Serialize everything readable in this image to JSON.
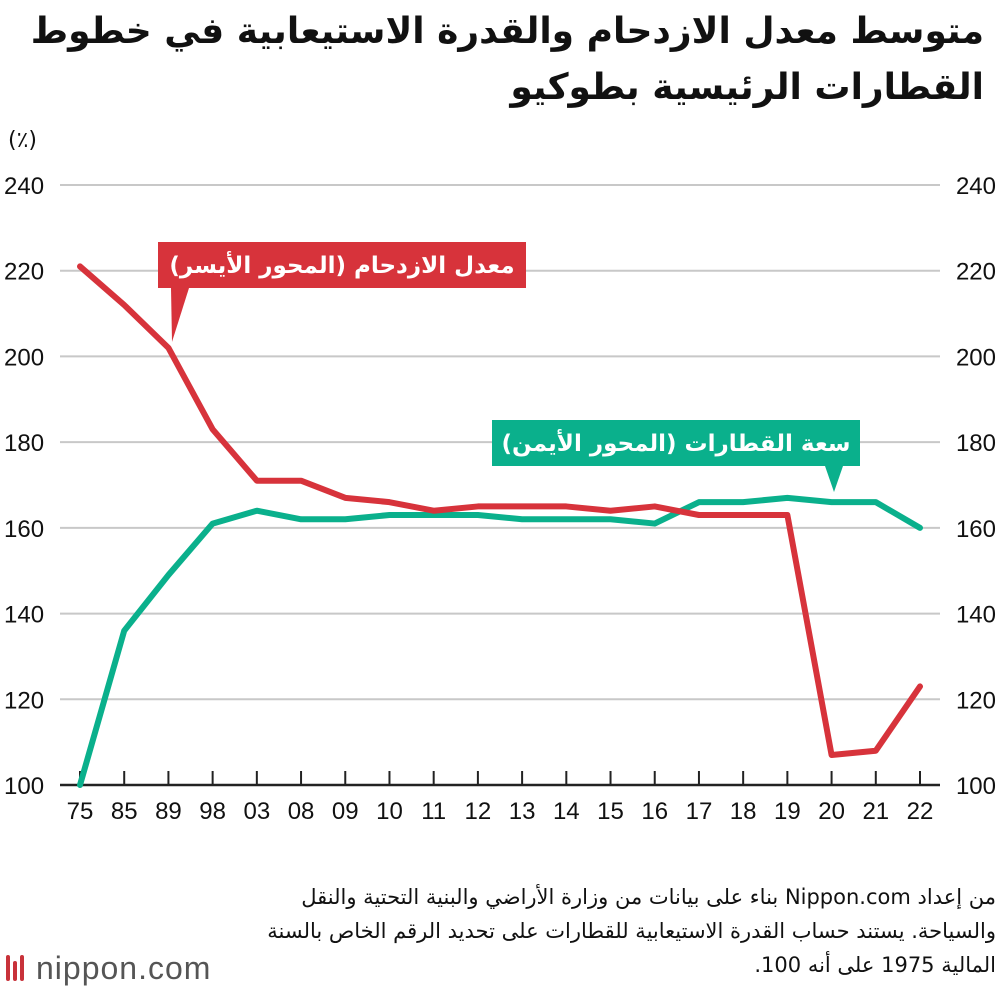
{
  "title": "متوسط معدل الازدحام والقدرة الاستيعابية في خطوط القطارات الرئيسية بطوكيو",
  "unit_label": "(٪)",
  "source": "من إعداد Nippon.com بناء على بيانات من وزارة الأراضي والبنية التحتية والنقل والسياحة. يستند حساب القدرة الاستيعابية للقطارات على تحديد الرقم الخاص بالسنة المالية 1975 على أنه 100.",
  "logo": {
    "text": "nippon.com"
  },
  "colors": {
    "congestion": "#d7333b",
    "capacity": "#0ab08c",
    "grid": "#c8c8c8",
    "axis": "#222222"
  },
  "chart_data": {
    "type": "line",
    "categories": [
      "75",
      "85",
      "89",
      "98",
      "03",
      "08",
      "09",
      "10",
      "11",
      "12",
      "13",
      "14",
      "15",
      "16",
      "17",
      "18",
      "19",
      "20",
      "21",
      "22"
    ],
    "ylim": [
      100,
      240
    ],
    "yticks": [
      100,
      120,
      140,
      160,
      180,
      200,
      220,
      240
    ],
    "grid": true,
    "series": [
      {
        "name": "معدل الازدحام (المحور الأيسر)",
        "axis": "left",
        "values": [
          221,
          212,
          202,
          183,
          171,
          171,
          167,
          166,
          164,
          165,
          165,
          165,
          164,
          165,
          163,
          163,
          163,
          107,
          108,
          123
        ]
      },
      {
        "name": "سعة القطارات (المحور الأيمن)",
        "axis": "right",
        "values": [
          100,
          136,
          149,
          161,
          164,
          162,
          162,
          163,
          163,
          163,
          162,
          162,
          162,
          161,
          166,
          166,
          167,
          166,
          166,
          160
        ]
      }
    ]
  }
}
